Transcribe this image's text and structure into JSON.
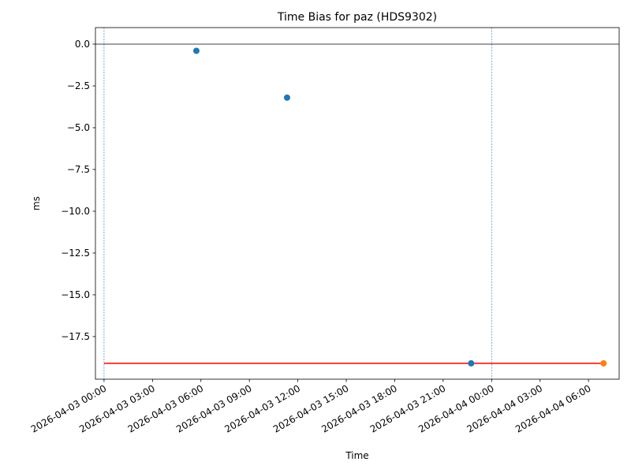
{
  "chart_data": {
    "type": "scatter",
    "title": "Time Bias for paz (HDS9302)",
    "xlabel": "Time",
    "ylabel": "ms",
    "xlim": [
      "2026-04-02 23:28",
      "2026-04-04 07:54"
    ],
    "ylim": [
      -20.05,
      0.99
    ],
    "xticks": [
      "2026-04-03 00:00",
      "2026-04-03 03:00",
      "2026-04-03 06:00",
      "2026-04-03 09:00",
      "2026-04-03 12:00",
      "2026-04-03 15:00",
      "2026-04-03 18:00",
      "2026-04-03 21:00",
      "2026-04-04 00:00",
      "2026-04-04 03:00",
      "2026-04-04 06:00"
    ],
    "yticks": [
      {
        "value": 0,
        "label": "0.0"
      },
      {
        "value": -2.5,
        "label": "−2.5"
      },
      {
        "value": -5,
        "label": "−5.0"
      },
      {
        "value": -7.5,
        "label": "−7.5"
      },
      {
        "value": -10,
        "label": "−10.0"
      },
      {
        "value": -12.5,
        "label": "−12.5"
      },
      {
        "value": -15,
        "label": "−15.0"
      },
      {
        "value": -17.5,
        "label": "−17.5"
      }
    ],
    "series": [
      {
        "color": "#1f77b4",
        "x": [
          "2026-04-03 05:43",
          "2026-04-03 11:20",
          "2026-04-03 22:44"
        ],
        "values": [
          -0.4,
          -3.2,
          -19.1
        ]
      },
      {
        "color": "#ff7f0e",
        "x": [
          "2026-04-04 06:56"
        ],
        "values": [
          -19.1
        ]
      }
    ],
    "lines": [
      {
        "color": "#ff0000",
        "x": [
          "2026-04-03 00:00",
          "2026-04-04 06:56"
        ],
        "values": [
          -19.1,
          -19.1
        ]
      }
    ],
    "hlines": [
      {
        "value": 0,
        "color": "#000000"
      }
    ],
    "vlines": [
      {
        "x": "2026-04-03 00:00",
        "color": "#1f77b4"
      },
      {
        "x": "2026-04-04 00:00",
        "color": "#1f77b4"
      }
    ]
  }
}
